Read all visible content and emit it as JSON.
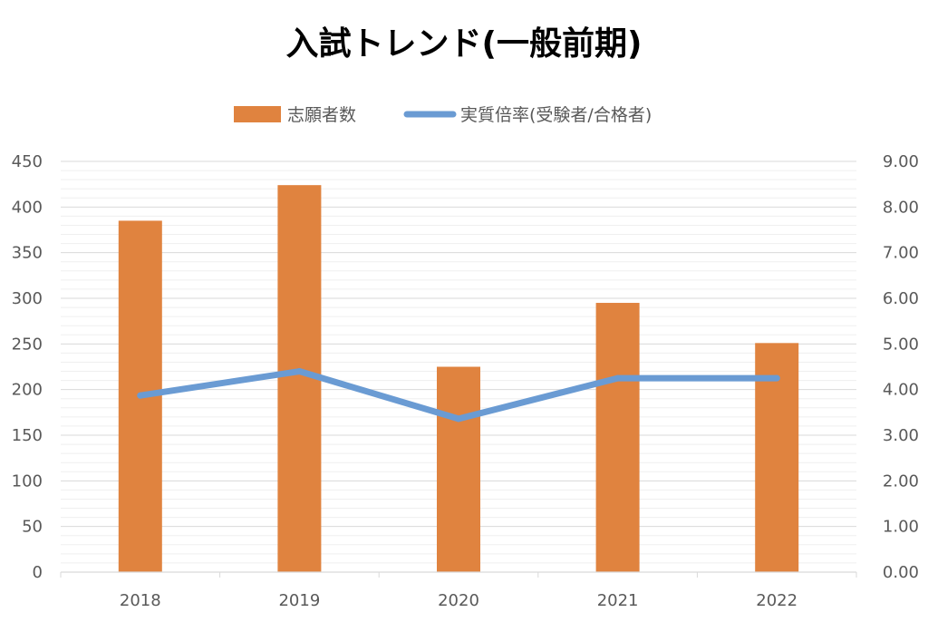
{
  "chart_data": {
    "type": "bar",
    "title": "入試トレンド(一般前期)",
    "categories": [
      "2018",
      "2019",
      "2020",
      "2021",
      "2022"
    ],
    "series": [
      {
        "name": "志願者数",
        "type": "bar",
        "axis": "left",
        "color": "#E0833F",
        "values": [
          385,
          424,
          225,
          295,
          251
        ]
      },
      {
        "name": "実質倍率(受験者/合格者)",
        "type": "line",
        "axis": "right",
        "color": "#6A9BD3",
        "values": [
          3.87,
          4.4,
          3.36,
          4.25,
          4.25
        ]
      }
    ],
    "y_left": {
      "min": 0,
      "max": 450,
      "ticks": [
        "0",
        "50",
        "100",
        "150",
        "200",
        "250",
        "300",
        "350",
        "400",
        "450"
      ]
    },
    "y_right": {
      "min": 0,
      "max": 9,
      "ticks": [
        "0.00",
        "1.00",
        "2.00",
        "3.00",
        "4.00",
        "5.00",
        "6.00",
        "7.00",
        "8.00",
        "9.00"
      ]
    },
    "grid": true,
    "legend_position": "top"
  }
}
